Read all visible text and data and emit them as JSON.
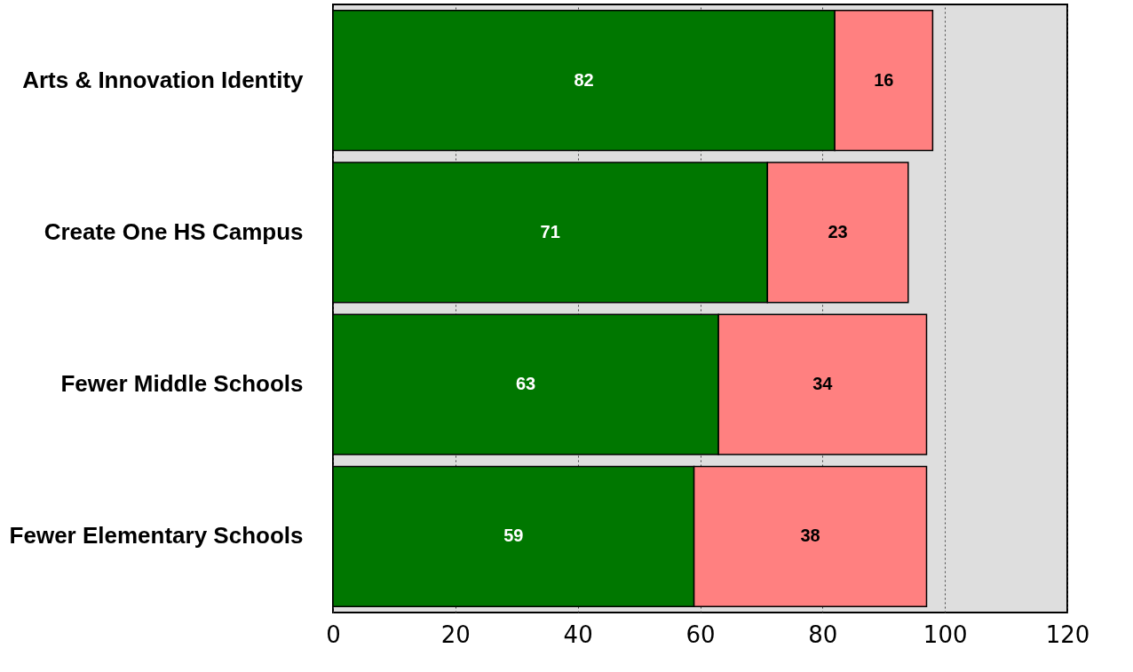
{
  "chart_data": {
    "type": "bar",
    "orientation": "horizontal",
    "stacked": true,
    "categories": [
      "Arts & Innovation Identity",
      "Create One HS Campus",
      "Fewer Middle Schools",
      "Fewer Elementary Schools"
    ],
    "series": [
      {
        "color": "#007700",
        "values": [
          82,
          71,
          63,
          59
        ]
      },
      {
        "color": "#ff8080",
        "values": [
          16,
          23,
          34,
          38
        ]
      }
    ],
    "xlim": [
      0,
      120
    ],
    "xticks": [
      0,
      20,
      40,
      60,
      80,
      100,
      120
    ],
    "grid": "x",
    "data_labels": true
  }
}
